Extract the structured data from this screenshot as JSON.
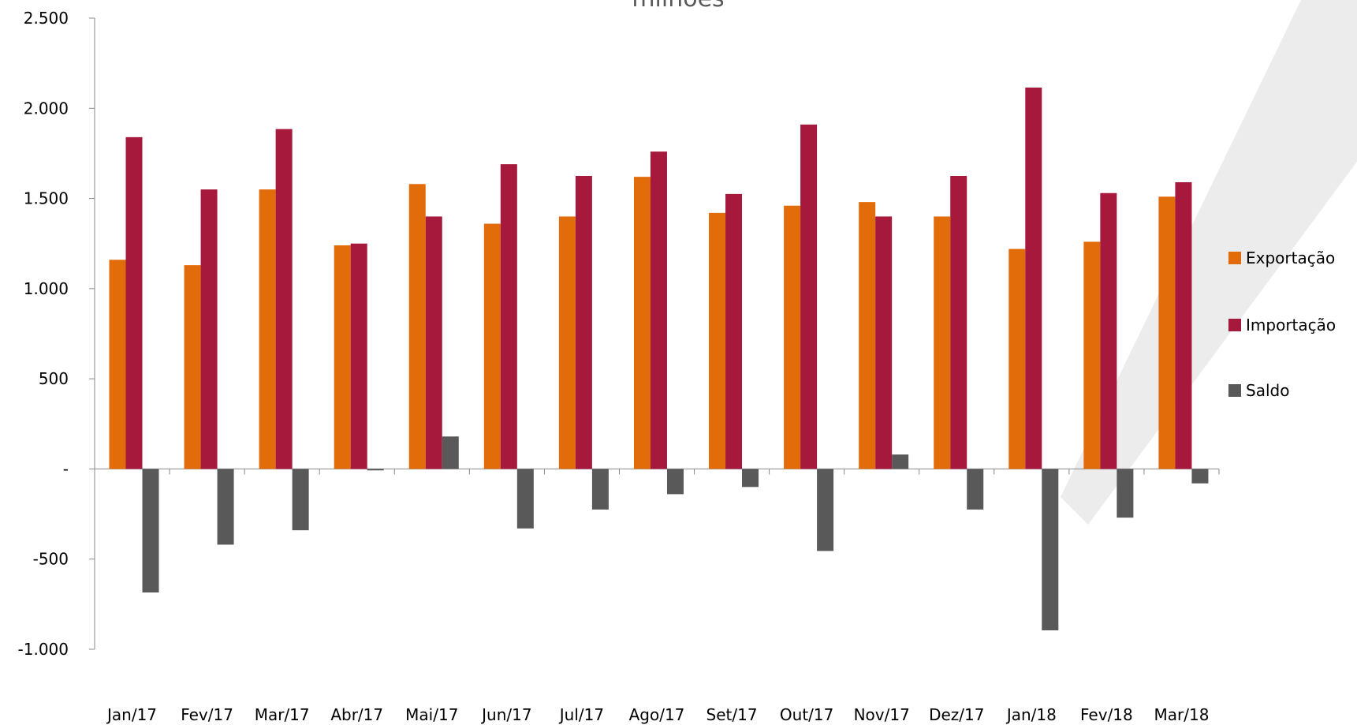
{
  "chart_data": {
    "type": "bar",
    "title": "milhões",
    "categories": [
      "Jan/17",
      "Fev/17",
      "Mar/17",
      "Abr/17",
      "Mai/17",
      "Jun/17",
      "Jul/17",
      "Ago/17",
      "Set/17",
      "Out/17",
      "Nov/17",
      "Dez/17",
      "Jan/18",
      "Fev/18",
      "Mar/18"
    ],
    "series": [
      {
        "name": "Exportação",
        "color": "#E36C0A",
        "values": [
          1160,
          1130,
          1550,
          1240,
          1580,
          1360,
          1400,
          1620,
          1420,
          1460,
          1480,
          1400,
          1220,
          1260,
          1510
        ]
      },
      {
        "name": "Importação",
        "color": "#A6193C",
        "values": [
          1840,
          1550,
          1885,
          1250,
          1400,
          1690,
          1625,
          1760,
          1525,
          1910,
          1400,
          1625,
          2115,
          1530,
          1590
        ]
      },
      {
        "name": "Saldo",
        "color": "#595959",
        "values": [
          -685,
          -420,
          -340,
          -8,
          180,
          -330,
          -225,
          -140,
          -100,
          -455,
          80,
          -225,
          -895,
          -270,
          -80
        ]
      }
    ],
    "ylim": [
      -1000,
      2500
    ],
    "yticks": [
      {
        "value": 2500,
        "label": "2.500"
      },
      {
        "value": 2000,
        "label": "2.000"
      },
      {
        "value": 1500,
        "label": "1.500"
      },
      {
        "value": 1000,
        "label": "1.000"
      },
      {
        "value": 500,
        "label": "500"
      },
      {
        "value": 0,
        "label": "-"
      },
      {
        "value": -500,
        "label": "-500"
      },
      {
        "value": -1000,
        "label": "-1.000"
      }
    ],
    "grid": false,
    "legend_position": "right"
  }
}
